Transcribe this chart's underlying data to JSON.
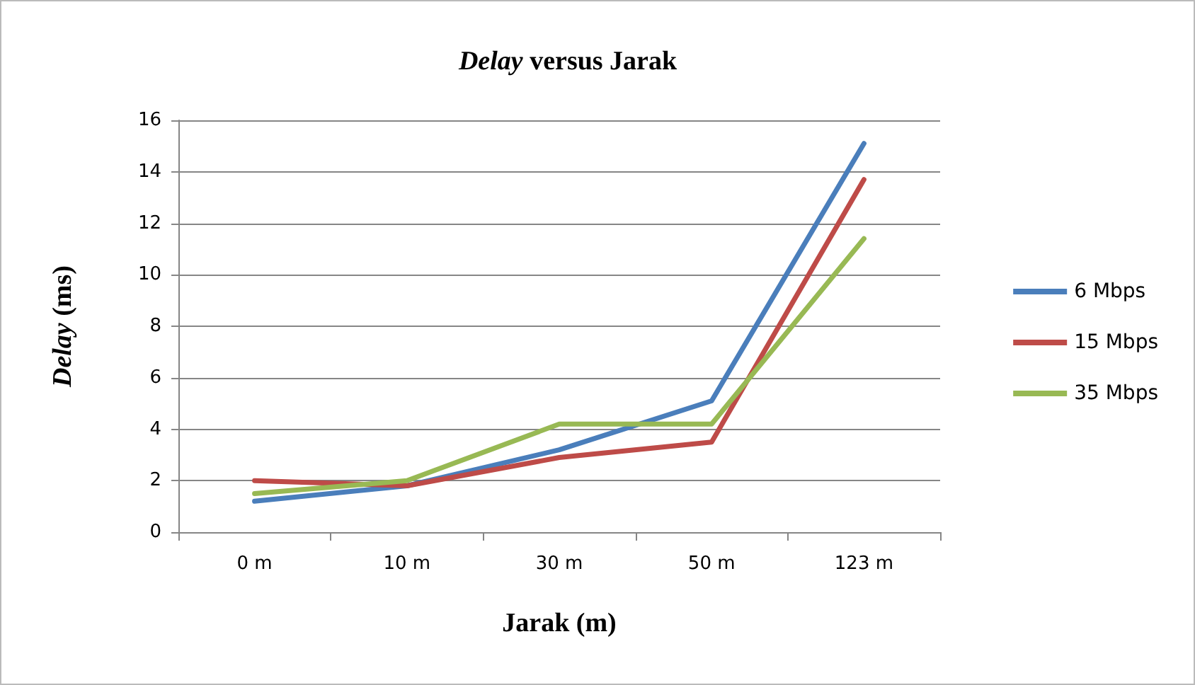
{
  "chart_data": {
    "type": "line",
    "title": "Delay versus Jarak",
    "xlabel": "Jarak (m)",
    "ylabel": "Delay (ms)",
    "categories": [
      "0 m",
      "10 m",
      "30 m",
      "50 m",
      "123 m"
    ],
    "series": [
      {
        "name": "6 Mbps",
        "color": "#4a7ebb",
        "values": [
          1.2,
          1.8,
          3.2,
          5.1,
          15.1
        ]
      },
      {
        "name": "15 Mbps",
        "color": "#be4b48",
        "values": [
          2.0,
          1.8,
          2.9,
          3.5,
          13.7
        ]
      },
      {
        "name": "35 Mbps",
        "color": "#98b954",
        "values": [
          1.5,
          2.0,
          4.2,
          4.2,
          11.4
        ]
      }
    ],
    "ylim": [
      0,
      16
    ],
    "yticks": [
      0,
      2,
      4,
      6,
      8,
      10,
      12,
      14,
      16
    ],
    "grid": "y",
    "legend": "right",
    "marker": "none",
    "line_style": "solid"
  }
}
